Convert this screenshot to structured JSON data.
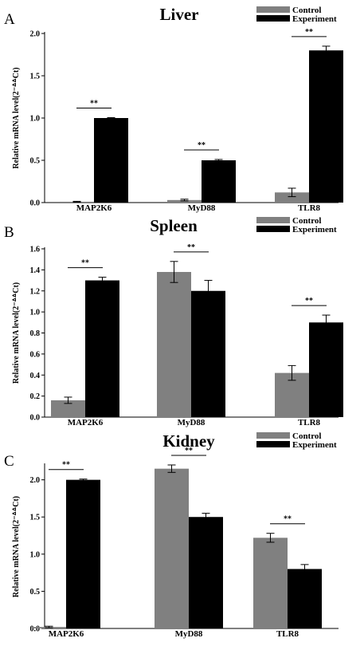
{
  "colors": {
    "control": "#808080",
    "experiment": "#000000"
  },
  "chart_data": [
    {
      "type": "bar",
      "panel_label": "A",
      "title": "Liver",
      "ylabel": "Relative mRNA level(2⁻ᐞᐞCt)",
      "categories": [
        "MAP2K6",
        "MyD88",
        "TLR8"
      ],
      "ylim": [
        0,
        2.0
      ],
      "yticks": [
        0.0,
        0.5,
        1.0,
        1.5,
        2.0
      ],
      "ytick_labels": [
        "0.0",
        "0.5",
        "1.0",
        "1.5",
        "2.0"
      ],
      "legend_position": "top-right",
      "series": [
        {
          "name": "Control",
          "values": [
            0.01,
            0.03,
            0.12
          ],
          "errors": [
            0.005,
            0.01,
            0.05
          ]
        },
        {
          "name": "Experiment",
          "values": [
            1.0,
            0.5,
            1.8
          ],
          "errors": [
            0.005,
            0.01,
            0.05
          ]
        }
      ],
      "significance": [
        "**",
        "**",
        "**"
      ]
    },
    {
      "type": "bar",
      "panel_label": "B",
      "title": "Spleen",
      "ylabel": "Relative mRNA level(2⁻ᐞᐞCt)",
      "categories": [
        "MAP2K6",
        "MyD88",
        "TLR8"
      ],
      "ylim": [
        0,
        1.6
      ],
      "yticks": [
        0.0,
        0.2,
        0.4,
        0.6,
        0.8,
        1.0,
        1.2,
        1.4,
        1.6
      ],
      "ytick_labels": [
        "0.0",
        "0.2",
        "0.4",
        "0.6",
        "0.8",
        "1.0",
        "1.2",
        "1.4",
        "1.6"
      ],
      "legend_position": "top-right",
      "series": [
        {
          "name": "Control",
          "values": [
            0.16,
            1.38,
            0.42
          ],
          "errors": [
            0.03,
            0.1,
            0.07
          ]
        },
        {
          "name": "Experiment",
          "values": [
            1.3,
            1.2,
            0.9
          ],
          "errors": [
            0.03,
            0.1,
            0.07
          ]
        }
      ],
      "significance": [
        "**",
        "**",
        "**"
      ]
    },
    {
      "type": "bar",
      "panel_label": "C",
      "title": "Kidney",
      "ylabel": "Relative mRNA level(2⁻ᐞᐞCt)",
      "categories": [
        "MAP2K6",
        "MyD88",
        "TLR8"
      ],
      "ylim": [
        0,
        2.2
      ],
      "yticks": [
        0.0,
        0.5,
        1.0,
        1.5,
        2.0
      ],
      "ytick_labels": [
        "0.0",
        "0.5",
        "1.0",
        "1.5",
        "2.0"
      ],
      "legend_position": "top-right",
      "series": [
        {
          "name": "Control",
          "values": [
            0.02,
            2.15,
            1.22
          ],
          "errors": [
            0.01,
            0.05,
            0.06
          ]
        },
        {
          "name": "Experiment",
          "values": [
            2.0,
            1.5,
            0.8
          ],
          "errors": [
            0.01,
            0.05,
            0.06
          ]
        }
      ],
      "significance": [
        "**",
        "**",
        "**"
      ]
    }
  ]
}
